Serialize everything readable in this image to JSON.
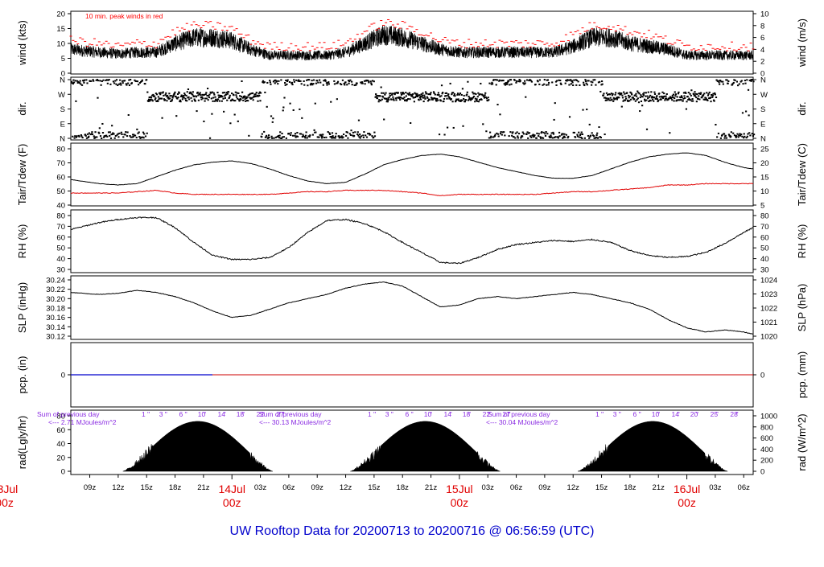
{
  "title": "UW Rooftop Data for 20200713  to  20200716 @ 06:56:59  (UTC)",
  "colors": {
    "text": "#000000",
    "peak": "#ff0000",
    "dew": "#e00000",
    "precip_blue": "#0000cc",
    "precip_red": "#cc0000",
    "rad_text": "#8a2be2",
    "date": "#e00000",
    "title": "#0000cc"
  },
  "x_axis": {
    "hour_labels": [
      "09z",
      "12z",
      "15z",
      "18z",
      "21z",
      "03z",
      "06z",
      "09z",
      "12z",
      "15z",
      "18z",
      "21z",
      "03z",
      "06z",
      "09z",
      "12z",
      "15z",
      "18z",
      "21z",
      "03z",
      "06z"
    ],
    "date_labels": [
      {
        "line1": "13Jul",
        "line2": "00z"
      },
      {
        "line1": "14Jul",
        "line2": "00z"
      },
      {
        "line1": "15Jul",
        "line2": "00z"
      },
      {
        "line1": "16Jul",
        "line2": "00z"
      }
    ]
  },
  "panels": [
    {
      "id": "wind",
      "left_label": "wind (kts)",
      "right_label": "wind (m/s)",
      "left_ticks": [
        "0",
        "5",
        "10",
        "15",
        "20"
      ],
      "right_ticks": [
        "0",
        "2",
        "4",
        "6",
        "8",
        "10"
      ],
      "annotation": "10 min. peak winds in red"
    },
    {
      "id": "dir",
      "left_label": "dir.",
      "right_label": "dir.",
      "left_ticks": [
        "N",
        "E",
        "S",
        "W",
        "N"
      ],
      "right_ticks": [
        "N",
        "E",
        "S",
        "W",
        "N"
      ]
    },
    {
      "id": "temp",
      "left_label": "Tair/Tdew (F)",
      "right_label": "Tair/Tdew (C)",
      "left_ticks": [
        "40",
        "50",
        "60",
        "70",
        "80"
      ],
      "right_ticks": [
        "5",
        "10",
        "15",
        "20",
        "25"
      ]
    },
    {
      "id": "rh",
      "left_label": "RH (%)",
      "right_label": "RH (%)",
      "left_ticks": [
        "30",
        "40",
        "50",
        "60",
        "70",
        "80"
      ],
      "right_ticks": [
        "30",
        "40",
        "50",
        "60",
        "70",
        "80"
      ]
    },
    {
      "id": "slp",
      "left_label": "SLP (inHg)",
      "right_label": "SLP (hPa)",
      "left_ticks": [
        "30.12",
        "30.14",
        "30.16",
        "30.18",
        "30.20",
        "30.22",
        "30.24"
      ],
      "right_ticks": [
        "1020",
        "1021",
        "1022",
        "1023",
        "1024"
      ]
    },
    {
      "id": "pcp",
      "left_label": "pcp. (in)",
      "right_label": "pcp. (mm)",
      "left_ticks": [
        "0"
      ],
      "right_ticks": [
        "0"
      ]
    },
    {
      "id": "rad",
      "left_label": "rad(Lgly/hr)",
      "right_label": "rad (W/m^2)",
      "left_ticks": [
        "0",
        "20",
        "40",
        "60",
        "80"
      ],
      "right_ticks": [
        "0",
        "200",
        "400",
        "600",
        "800",
        "1000"
      ]
    }
  ],
  "rad_annotations": [
    {
      "line1": "Sum of previous day",
      "line2": "<--- 2.71 MJoules/m^2",
      "hours": [
        "1",
        "3",
        "6",
        "10",
        "14",
        "18",
        "22",
        "27"
      ]
    },
    {
      "line1": "Sum of previous day",
      "line2": "<--- 30.13 MJoules/m^2",
      "hours": [
        "1",
        "3",
        "6",
        "10",
        "14",
        "18",
        "22",
        "27"
      ]
    },
    {
      "line1": "Sum of previous day",
      "line2": "<--- 30.04 MJoules/m^2",
      "hours": [
        "1",
        "3",
        "6",
        "10",
        "14",
        "20",
        "25",
        "28"
      ]
    }
  ],
  "chart_data": {
    "type": "line",
    "x_unit": "hours UTC since 2020-07-13 00z",
    "x_range": [
      7,
      79
    ],
    "series": [
      {
        "name": "wind",
        "unit": "kts",
        "ylim": [
          0,
          20
        ],
        "x": [
          7,
          10,
          12,
          14,
          16,
          18,
          20,
          22,
          24,
          26,
          28,
          30,
          32,
          34,
          36,
          38,
          40,
          42,
          44,
          46,
          48,
          50,
          52,
          54,
          56,
          58,
          60,
          62,
          64,
          66,
          68,
          70,
          72,
          74,
          76,
          78,
          79
        ],
        "y": [
          8,
          7,
          6.5,
          7,
          7,
          10,
          12,
          12,
          11,
          8,
          6,
          6,
          6,
          6,
          7,
          10,
          13,
          12,
          10,
          8,
          7,
          7,
          7,
          7,
          7,
          7,
          9,
          12,
          12,
          10,
          9,
          8,
          6,
          6,
          6,
          6,
          6
        ]
      },
      {
        "name": "peak winds",
        "unit": "kts",
        "ylim": [
          0,
          20
        ],
        "x": [
          7,
          10,
          12,
          14,
          16,
          18,
          20,
          22,
          24,
          26,
          28,
          30,
          32,
          34,
          36,
          38,
          40,
          42,
          44,
          46,
          48,
          50,
          52,
          54,
          56,
          58,
          60,
          62,
          64,
          66,
          68,
          70,
          72,
          74,
          76,
          78,
          79
        ],
        "y": [
          11,
          10,
          9,
          10,
          10,
          14,
          16,
          16,
          15,
          11,
          9,
          9,
          9,
          9,
          10,
          14,
          17,
          16,
          14,
          11,
          10,
          10,
          10,
          10,
          10,
          10,
          13,
          16,
          16,
          14,
          13,
          11,
          9,
          9,
          9,
          9,
          9
        ]
      },
      {
        "name": "Tair",
        "unit": "F",
        "ylim": [
          40,
          82
        ],
        "x": [
          7,
          10,
          12,
          14,
          16,
          18,
          20,
          22,
          24,
          26,
          28,
          30,
          32,
          34,
          36,
          38,
          40,
          42,
          44,
          46,
          48,
          50,
          52,
          54,
          56,
          58,
          60,
          62,
          64,
          66,
          68,
          70,
          72,
          74,
          76,
          78,
          79
        ],
        "y": [
          59,
          56,
          55,
          56,
          61,
          66,
          70,
          72,
          73,
          71,
          67,
          62,
          58,
          56,
          57,
          63,
          70,
          74,
          77,
          78,
          76,
          72,
          68,
          65,
          62,
          60,
          60,
          62,
          67,
          72,
          76,
          78,
          79,
          77,
          72,
          68,
          67
        ]
      },
      {
        "name": "Tdew",
        "unit": "F",
        "ylim": [
          40,
          82
        ],
        "x": [
          7,
          10,
          12,
          14,
          16,
          18,
          20,
          22,
          24,
          26,
          28,
          30,
          32,
          34,
          36,
          38,
          40,
          42,
          44,
          46,
          48,
          50,
          52,
          54,
          56,
          58,
          60,
          62,
          64,
          66,
          68,
          70,
          72,
          74,
          76,
          78,
          79
        ],
        "y": [
          49,
          49,
          49,
          50,
          51,
          49,
          48,
          48,
          48,
          48,
          48,
          49,
          50,
          50,
          51,
          51,
          51,
          50,
          49,
          47,
          48,
          48,
          48,
          48,
          48,
          49,
          50,
          50,
          51,
          52,
          53,
          55,
          55,
          56,
          56,
          56,
          56
        ]
      },
      {
        "name": "RH",
        "unit": "%",
        "ylim": [
          28,
          82
        ],
        "x": [
          7,
          10,
          12,
          14,
          16,
          18,
          20,
          22,
          24,
          26,
          28,
          30,
          32,
          34,
          36,
          38,
          40,
          42,
          44,
          46,
          48,
          50,
          52,
          54,
          56,
          58,
          60,
          62,
          64,
          66,
          68,
          70,
          72,
          74,
          76,
          78,
          79
        ],
        "y": [
          68,
          75,
          78,
          80,
          80,
          70,
          55,
          42,
          38,
          38,
          40,
          50,
          65,
          77,
          78,
          74,
          66,
          55,
          45,
          35,
          34,
          40,
          48,
          53,
          55,
          57,
          56,
          58,
          55,
          47,
          42,
          40,
          41,
          45,
          54,
          65,
          70
        ]
      },
      {
        "name": "SLP",
        "unit": "inHg",
        "ylim": [
          30.11,
          30.245
        ],
        "x": [
          7,
          10,
          12,
          14,
          16,
          18,
          20,
          22,
          24,
          26,
          28,
          30,
          32,
          34,
          36,
          38,
          40,
          42,
          44,
          46,
          48,
          50,
          52,
          54,
          56,
          58,
          60,
          62,
          64,
          66,
          68,
          70,
          72,
          74,
          76,
          78,
          79
        ],
        "y": [
          30.215,
          30.21,
          30.213,
          30.22,
          30.215,
          30.205,
          30.19,
          30.17,
          30.155,
          30.16,
          30.175,
          30.19,
          30.2,
          30.21,
          30.225,
          30.235,
          30.24,
          30.23,
          30.205,
          30.18,
          30.185,
          30.2,
          30.205,
          30.2,
          30.205,
          30.21,
          30.215,
          30.21,
          30.2,
          30.19,
          30.175,
          30.15,
          30.13,
          30.12,
          30.125,
          30.12,
          30.115
        ]
      },
      {
        "name": "radiation",
        "unit": "Lgly/hr",
        "ylim": [
          0,
          80
        ],
        "days": [
          {
            "sunrise": 12.5,
            "sunset": 28.3,
            "peak": 72
          },
          {
            "sunrise": 36.5,
            "sunset": 52.3,
            "peak": 72
          },
          {
            "sunrise": 60.5,
            "sunset": 76.3,
            "peak": 72
          }
        ]
      }
    ]
  }
}
